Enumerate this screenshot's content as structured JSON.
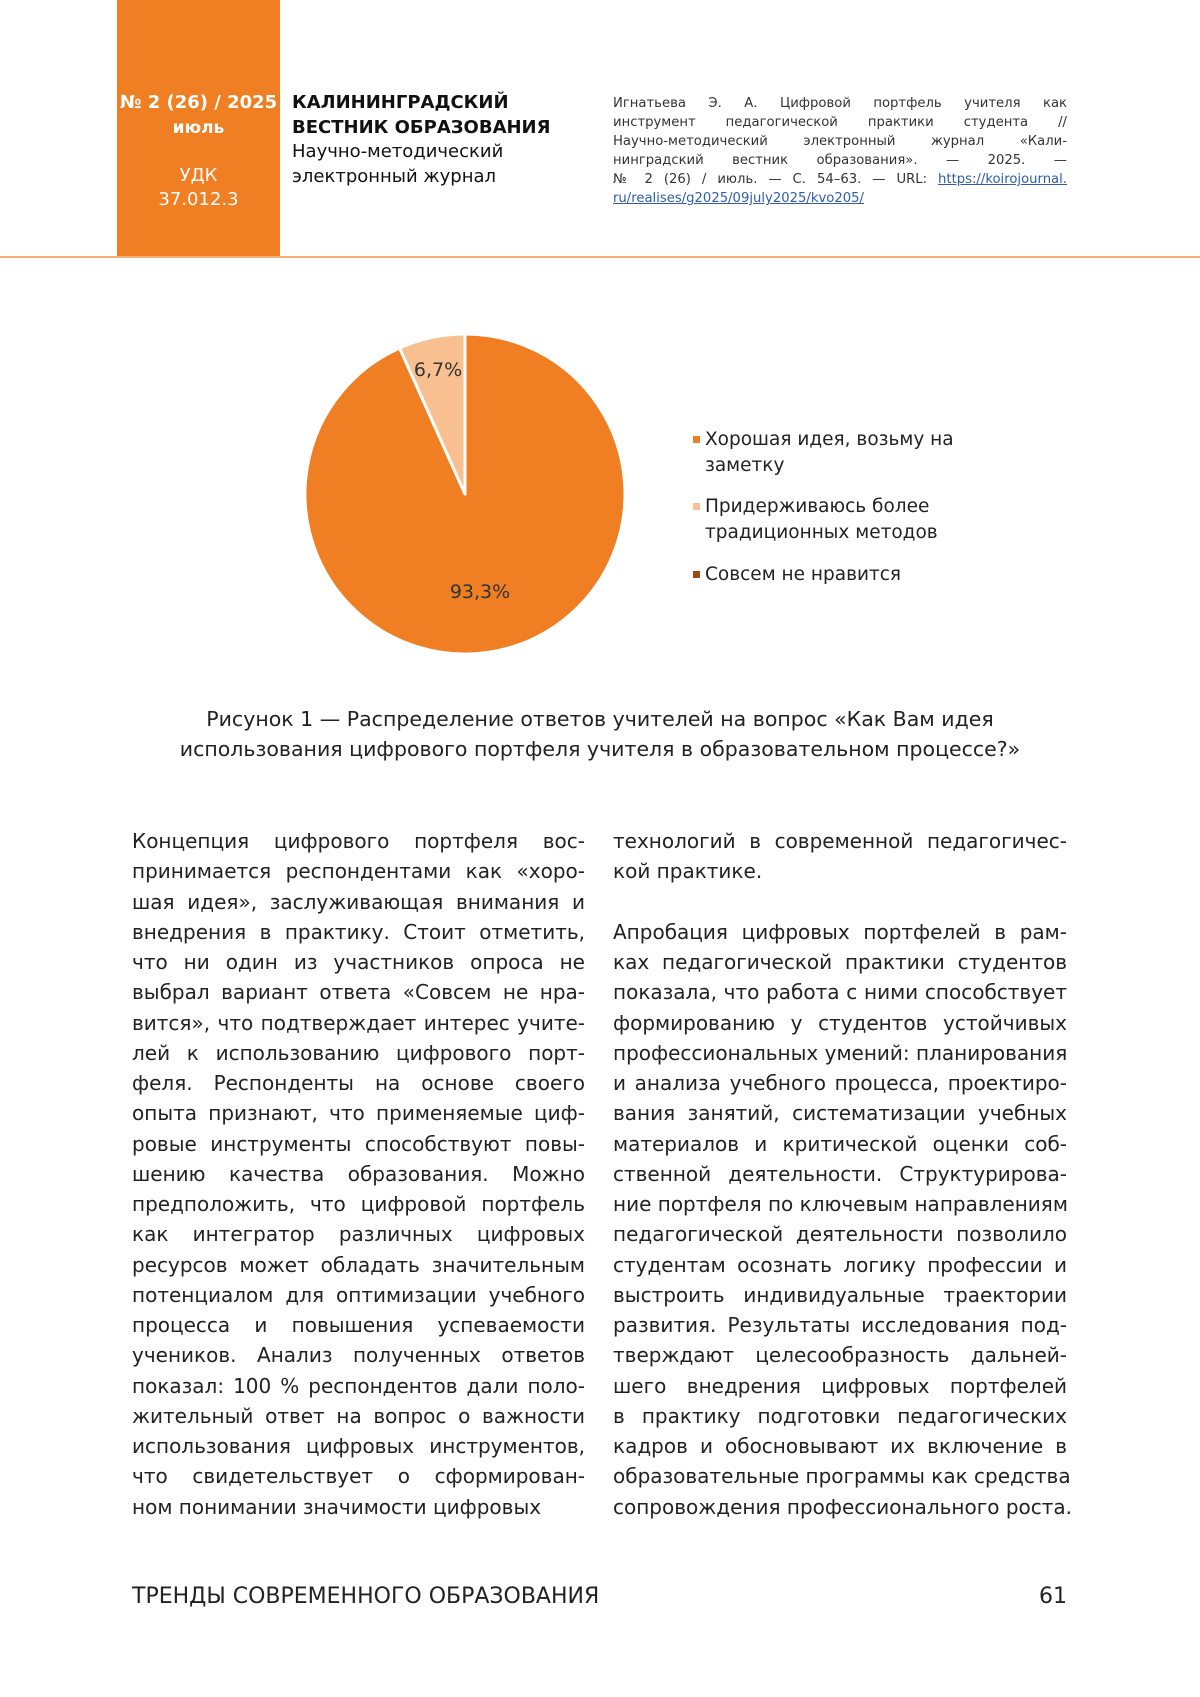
{
  "header": {
    "issue": "№ 2 (26) / 2025",
    "month": "июль",
    "udk_label": "УДК",
    "udk_code": "37.012.3",
    "journal_title_line1": "КАЛИНИНГРАДСКИЙ",
    "journal_title_line2": "ВЕСТНИК ОБРАЗОВАНИЯ",
    "journal_subtitle_line1": "Научно-методический",
    "journal_subtitle_line2": "электронный журнал",
    "citation_lines": [
      "Игнатьева Э. А. Цифровой портфель учителя как",
      "инструмент педагогической практики студента //",
      "Научно-методический электронный журнал «Кали-",
      "нинградский вестник образования». — 2025. —",
      "№ 2 (26) / июль. — С. 54–63. — URL: "
    ],
    "citation_link_part1": "https://koirojournal.",
    "citation_link_part2": "ru/realises/g2025/09july2025/kvo205/"
  },
  "chart_data": {
    "type": "pie",
    "slices": [
      {
        "name": "Хорошая идея, возьму на заметку",
        "value": 93.3,
        "label": "93,3%",
        "color": "#EF7F22"
      },
      {
        "name": "Придерживаюсь более традиционных методов",
        "value": 6.7,
        "label": "6,7%",
        "color": "#F8C091"
      },
      {
        "name": "Совсем не нравится",
        "value": 0,
        "label": "",
        "color": "#9A4A12"
      }
    ],
    "legend": {
      "position": "right",
      "entries": [
        {
          "lines": [
            "Хорошая идея, возьму на",
            "заметку"
          ],
          "color": "#EF7F22"
        },
        {
          "lines": [
            "Придерживаюсь более",
            "традиционных методов"
          ],
          "color": "#F8C091"
        },
        {
          "lines": [
            "Совсем не нравится"
          ],
          "color": "#9A4A12"
        }
      ]
    }
  },
  "caption": {
    "line1": "Рисунок 1 — Распределение ответов учителей на вопрос «Как Вам идея",
    "line2": "использования цифрового портфеля учителя в образовательном процессе?»"
  },
  "body": {
    "left_column": [
      "Концепция цифрового портфеля вос-",
      "принимается респондентами как «хоро-",
      "шая идея», заслуживающая внимания и",
      "внедрения в практику. Стоит отметить,",
      "что ни один из участников опроса не",
      "выбрал вариант ответа «Совсем не нра-",
      "вится», что подтверждает интерес учите-",
      "лей к использованию цифрового порт-",
      "феля. Респонденты на основе своего",
      "опыта признают, что применяемые циф-",
      "ровые инструменты способствуют повы-",
      "шению качества образования. Можно",
      "предположить, что цифровой портфель",
      "как интегратор различных цифровых",
      "ресурсов может обладать значительным",
      "потенциалом для оптимизации учебного",
      "процесса и повышения успеваемости",
      "учеников. Анализ полученных ответов",
      "показал: 100 % респондентов дали поло-",
      "жительный ответ на вопрос о важности",
      "использования цифровых инструментов,",
      "что свидетельствует о сформирован-",
      "ном понимании значимости цифровых"
    ],
    "right_column": [
      "технологий в современной педагогичес-",
      "кой практике.",
      "",
      "Апробация цифровых портфелей в рам-",
      "ках педагогической практики студентов",
      "показала, что работа с ними способствует",
      "формированию у студентов устойчивых",
      "профессиональных умений: планирования",
      "и анализа учебного процесса, проектиро-",
      "вания занятий, систематизации учебных",
      "материалов и критической оценки соб-",
      "ственной деятельности. Структурирова-",
      "ние портфеля по ключевым направлениям",
      "педагогической деятельности позволило",
      "студентам осознать логику профессии и",
      "выстроить индивидуальные траектории",
      "развития. Результаты исследования под-",
      "тверждают целесообразность дальней-",
      "шего внедрения цифровых портфелей",
      "в практику подготовки педагогических",
      "кадров и обосновывают их включение в",
      "образовательные программы как средства",
      "сопровождения профессионального роста."
    ]
  },
  "footer": {
    "section": "ТРЕНДЫ СОВРЕМЕННОГО ОБРАЗОВАНИЯ",
    "page_number": "61"
  },
  "colors": {
    "brand_orange": "#EF7F22",
    "link": "#2F5DA8"
  }
}
